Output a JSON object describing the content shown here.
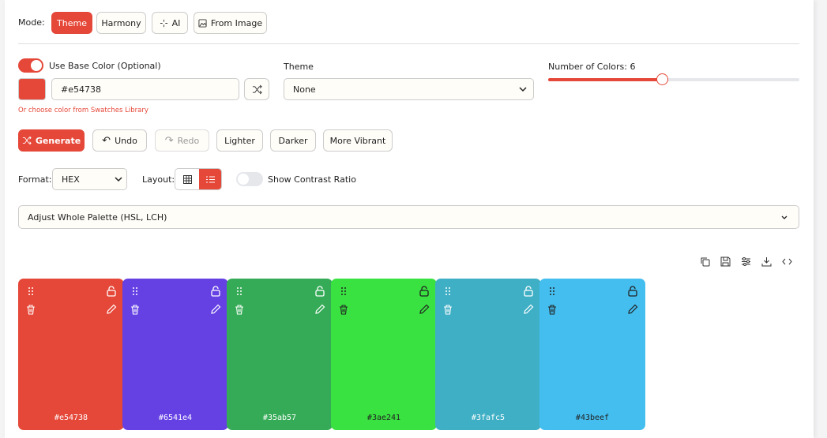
{
  "mode": {
    "label": "Mode:",
    "options": [
      "Theme",
      "Harmony",
      "AI",
      "From Image"
    ]
  },
  "base_color": {
    "toggle_label": "Use Base Color (Optional)",
    "hex": "#e54738",
    "swatch_link": "Or choose color from Swatches Library"
  },
  "theme": {
    "label": "Theme",
    "value": "None"
  },
  "count": {
    "label": "Number of Colors:",
    "value": 6
  },
  "actions": [
    "Generate",
    "Undo",
    "Redo",
    "Lighter",
    "Darker",
    "More Vibrant"
  ],
  "format": {
    "label": "Format:",
    "value": "HEX"
  },
  "layout_label": "Layout:",
  "contrast_label": "Show Contrast Ratio",
  "adjust": "Adjust Whole Palette (HSL, LCH)",
  "palette": [
    "#e54738",
    "#6541e4",
    "#35ab57",
    "#3ae241",
    "#3fafc5",
    "#43beef"
  ]
}
